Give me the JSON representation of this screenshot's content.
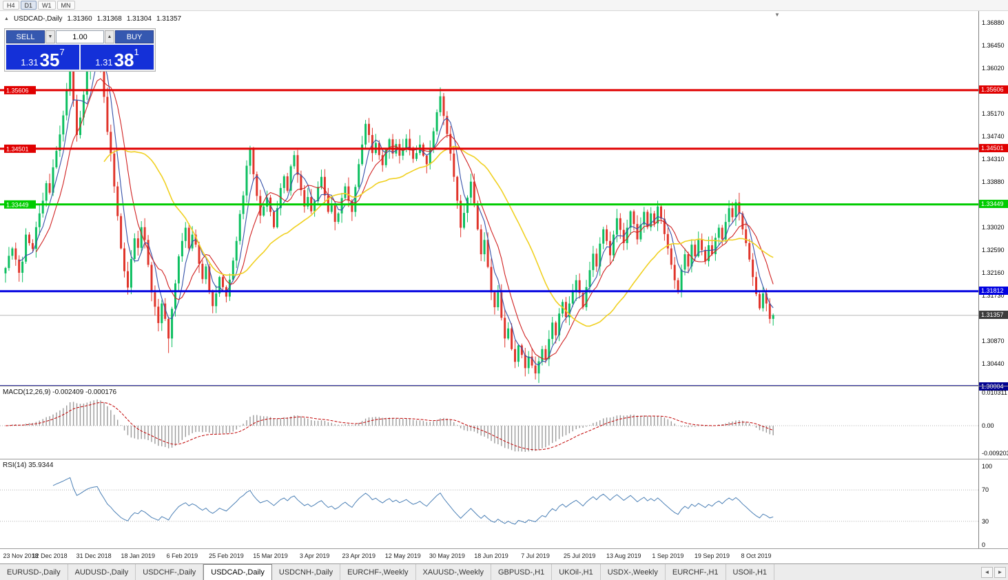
{
  "timeframe_toolbar": {
    "buttons": [
      "H4",
      "D1",
      "W1",
      "MN"
    ],
    "active": "D1"
  },
  "chart_header": {
    "symbol": "USDCAD-,Daily",
    "open": "1.31360",
    "high": "1.31368",
    "low": "1.31304",
    "close": "1.31357"
  },
  "trade_panel": {
    "sell_label": "SELL",
    "buy_label": "BUY",
    "volume": "1.00",
    "sell_price": {
      "prefix": "1.31",
      "big": "35",
      "sup": "7"
    },
    "buy_price": {
      "prefix": "1.31",
      "big": "38",
      "sup": "1"
    }
  },
  "icons": {
    "symbol_arrow": "▲",
    "dropdown_arrow": "▼",
    "spin_up": "▲",
    "shift_marker": "▼",
    "tab_scroll_left": "◄",
    "tab_scroll_right": "►"
  },
  "indicators": {
    "macd": {
      "header": "MACD(12,26,9) -0.002409 -0.000176"
    },
    "rsi": {
      "header": "RSI(14) 35.9344"
    }
  },
  "tabs": {
    "items": [
      "EURUSD-,Daily",
      "AUDUSD-,Daily",
      "USDCHF-,Daily",
      "USDCAD-,Daily",
      "USDCNH-,Daily",
      "EURCHF-,Weekly",
      "XAUUSD-,Weekly",
      "GBPUSD-,H1",
      "UKOil-,H1",
      "USDX-,Weekly",
      "EURCHF-,H1",
      "USOil-,H1"
    ],
    "active_index": 3
  },
  "chart_data": {
    "type": "candlestick",
    "symbol": "USDCAD",
    "timeframe": "Daily",
    "ylim": [
      1.3001,
      1.371
    ],
    "up_color": "#0cbf60",
    "down_color": "#e0352b",
    "first_open": 1.3215,
    "closes": [
      1.3225,
      1.3248,
      1.3262,
      1.3241,
      1.3216,
      1.3237,
      1.3288,
      1.3272,
      1.3261,
      1.3302,
      1.3328,
      1.3352,
      1.3385,
      1.3367,
      1.3415,
      1.3446,
      1.3477,
      1.3513,
      1.3562,
      1.3618,
      1.3541,
      1.3476,
      1.3509,
      1.3552,
      1.3596,
      1.3628,
      1.3645,
      1.3656,
      1.3602,
      1.3548,
      1.3482,
      1.3441,
      1.3379,
      1.3323,
      1.3262,
      1.3219,
      1.3188,
      1.3242,
      1.3281,
      1.3263,
      1.3302,
      1.3278,
      1.3231,
      1.3179,
      1.3152,
      1.3121,
      1.3158,
      1.3129,
      1.3092,
      1.3148,
      1.3196,
      1.3247,
      1.3276,
      1.3301,
      1.3262,
      1.3288,
      1.3269,
      1.3233,
      1.3204,
      1.3228,
      1.3181,
      1.3153,
      1.3177,
      1.3208,
      1.3189,
      1.3171,
      1.3203,
      1.3239,
      1.3276,
      1.3327,
      1.3362,
      1.3418,
      1.3451,
      1.3402,
      1.3361,
      1.3324,
      1.3341,
      1.3358,
      1.3331,
      1.3302,
      1.3338,
      1.3376,
      1.3398,
      1.3371,
      1.3417,
      1.3438,
      1.3401,
      1.3372,
      1.3341,
      1.3359,
      1.3332,
      1.3351,
      1.3378,
      1.3397,
      1.3362,
      1.3331,
      1.3343,
      1.3312,
      1.3328,
      1.3357,
      1.3379,
      1.3352,
      1.3331,
      1.3378,
      1.3421,
      1.3458,
      1.3497,
      1.3476,
      1.3442,
      1.3461,
      1.3438,
      1.3419,
      1.3448,
      1.3468,
      1.3441,
      1.3459,
      1.3437,
      1.3452,
      1.3469,
      1.3448,
      1.3431,
      1.3442,
      1.3458,
      1.3437,
      1.3421,
      1.3452,
      1.3483,
      1.3519,
      1.3549,
      1.3512,
      1.3478,
      1.3441,
      1.3397,
      1.3352,
      1.3301,
      1.3329,
      1.3358,
      1.3388,
      1.3347,
      1.3298,
      1.3251,
      1.3278,
      1.3227,
      1.3179,
      1.3151,
      1.3179,
      1.3131,
      1.3092,
      1.3111,
      1.3072,
      1.3048,
      1.3079,
      1.3061,
      1.3036,
      1.3058,
      1.3041,
      1.3026,
      1.3049,
      1.3072,
      1.3053,
      1.3091,
      1.3122,
      1.3098,
      1.3139,
      1.3161,
      1.3132,
      1.3158,
      1.3181,
      1.3202,
      1.3178,
      1.3151,
      1.3189,
      1.3221,
      1.3252,
      1.3228,
      1.3271,
      1.3298,
      1.3276,
      1.3249,
      1.3288,
      1.3319,
      1.3297,
      1.3272,
      1.3301,
      1.3332,
      1.3308,
      1.3279,
      1.3307,
      1.3331,
      1.3302,
      1.3328,
      1.3309,
      1.3341,
      1.3318,
      1.3289,
      1.3262,
      1.3231,
      1.3202,
      1.3181,
      1.3222,
      1.3251,
      1.3228,
      1.3269,
      1.3247,
      1.3278,
      1.3259,
      1.3238,
      1.3268,
      1.3251,
      1.3282,
      1.3301,
      1.3279,
      1.3312,
      1.3338,
      1.3321,
      1.3349,
      1.3328,
      1.3298,
      1.3272,
      1.3241,
      1.3208,
      1.3176,
      1.3149,
      1.3177,
      1.3158,
      1.3129,
      1.3136
    ],
    "date_labels": [
      {
        "i": 0,
        "label": "23 Nov 2018"
      },
      {
        "i": 13,
        "label": "12 Dec 2018"
      },
      {
        "i": 26,
        "label": "31 Dec 2018"
      },
      {
        "i": 39,
        "label": "18 Jan 2019"
      },
      {
        "i": 52,
        "label": "6 Feb 2019"
      },
      {
        "i": 65,
        "label": "25 Feb 2019"
      },
      {
        "i": 78,
        "label": "15 Mar 2019"
      },
      {
        "i": 91,
        "label": "3 Apr 2019"
      },
      {
        "i": 104,
        "label": "23 Apr 2019"
      },
      {
        "i": 117,
        "label": "12 May 2019"
      },
      {
        "i": 130,
        "label": "30 May 2019"
      },
      {
        "i": 143,
        "label": "18 Jun 2019"
      },
      {
        "i": 156,
        "label": "7 Jul 2019"
      },
      {
        "i": 169,
        "label": "25 Jul 2019"
      },
      {
        "i": 182,
        "label": "13 Aug 2019"
      },
      {
        "i": 195,
        "label": "1 Sep 2019"
      },
      {
        "i": 208,
        "label": "19 Sep 2019"
      },
      {
        "i": 221,
        "label": "8 Oct 2019"
      }
    ],
    "y_ticks": [
      {
        "label": "1.36880",
        "value": 1.3688
      },
      {
        "label": "1.36450",
        "value": 1.3645
      },
      {
        "label": "1.36020",
        "value": 1.3602
      },
      {
        "label": "1.35170",
        "value": 1.3517
      },
      {
        "label": "1.34740",
        "value": 1.3474
      },
      {
        "label": "1.34310",
        "value": 1.3431
      },
      {
        "label": "1.33880",
        "value": 1.3388
      },
      {
        "label": "1.33020",
        "value": 1.3302
      },
      {
        "label": "1.32590",
        "value": 1.3259
      },
      {
        "label": "1.32160",
        "value": 1.3216
      },
      {
        "label": "1.31730",
        "value": 1.3173
      },
      {
        "label": "1.30870",
        "value": 1.3087
      },
      {
        "label": "1.30440",
        "value": 1.3044
      }
    ],
    "hlines": [
      {
        "value": 1.35606,
        "label": "1.35606",
        "color": "#e00000",
        "width": 3,
        "left_label": true
      },
      {
        "value": 1.34501,
        "label": "1.34501",
        "color": "#e00000",
        "width": 3,
        "left_label": true
      },
      {
        "value": 1.33449,
        "label": "1.33449",
        "color": "#00cc00",
        "width": 3,
        "left_label": true
      },
      {
        "value": 1.31812,
        "label": "1.31812",
        "color": "#0000e0",
        "width": 3,
        "left_label": false
      },
      {
        "value": 1.30004,
        "label": "1.30004",
        "color": "#000090",
        "width": 5,
        "left_label": false
      }
    ],
    "current_price": {
      "value": 1.31357,
      "label": "1.31357",
      "color": "#3c3c3c"
    },
    "moving_averages": [
      {
        "period": 5,
        "color": "#3450a8"
      },
      {
        "period": 10,
        "color": "#d02020"
      },
      {
        "period": 30,
        "color": "#f0d020"
      }
    ],
    "macd": {
      "fast": 12,
      "slow": 26,
      "signal": 9,
      "axis_labels": [
        "0.010311",
        "0.00",
        "-0.009203"
      ],
      "hist_color": "#9a9a9a",
      "signal_color": "#c00000"
    },
    "rsi": {
      "period": 14,
      "axis_labels": [
        "100",
        "70",
        "30",
        "0"
      ],
      "levels": [
        70,
        30
      ],
      "line_color": "#4a7fb5"
    }
  }
}
